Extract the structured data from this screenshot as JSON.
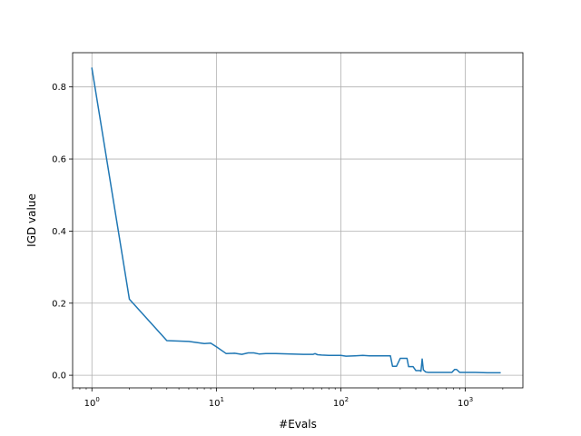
{
  "chart_data": {
    "type": "line",
    "title": "",
    "xlabel": "#Evals",
    "ylabel": "IGD value",
    "xscale": "log",
    "xlim": [
      0.7,
      2900
    ],
    "ylim": [
      -0.035,
      0.895
    ],
    "grid": true,
    "legend": "none",
    "xticks": [
      {
        "value": 1,
        "base": "10",
        "exp": "0"
      },
      {
        "value": 10,
        "base": "10",
        "exp": "1"
      },
      {
        "value": 100,
        "base": "10",
        "exp": "2"
      },
      {
        "value": 1000,
        "base": "10",
        "exp": "3"
      }
    ],
    "yticks": [
      {
        "value": 0.0,
        "label": "0.0"
      },
      {
        "value": 0.2,
        "label": "0.2"
      },
      {
        "value": 0.4,
        "label": "0.4"
      },
      {
        "value": 0.6,
        "label": "0.6"
      },
      {
        "value": 0.8,
        "label": "0.8"
      }
    ],
    "series": [
      {
        "color": "#1f77b4",
        "x": [
          1,
          2,
          4,
          6,
          8,
          9,
          10,
          12,
          14,
          16,
          18,
          20,
          22,
          25,
          30,
          40,
          50,
          55,
          60,
          62,
          65,
          70,
          80,
          100,
          110,
          130,
          150,
          170,
          200,
          250,
          260,
          280,
          300,
          320,
          340,
          350,
          380,
          400,
          430,
          440,
          450,
          460,
          480,
          500,
          600,
          700,
          780,
          820,
          850,
          900,
          1000,
          1200,
          1500,
          1900
        ],
        "y": [
          0.852,
          0.211,
          0.096,
          0.094,
          0.088,
          0.089,
          0.079,
          0.06,
          0.061,
          0.058,
          0.062,
          0.062,
          0.059,
          0.06,
          0.06,
          0.059,
          0.058,
          0.058,
          0.058,
          0.06,
          0.057,
          0.056,
          0.055,
          0.055,
          0.053,
          0.054,
          0.055,
          0.054,
          0.054,
          0.054,
          0.025,
          0.025,
          0.047,
          0.047,
          0.047,
          0.024,
          0.024,
          0.013,
          0.013,
          0.011,
          0.045,
          0.015,
          0.009,
          0.008,
          0.008,
          0.008,
          0.008,
          0.016,
          0.016,
          0.008,
          0.008,
          0.008,
          0.007,
          0.007
        ]
      }
    ]
  }
}
